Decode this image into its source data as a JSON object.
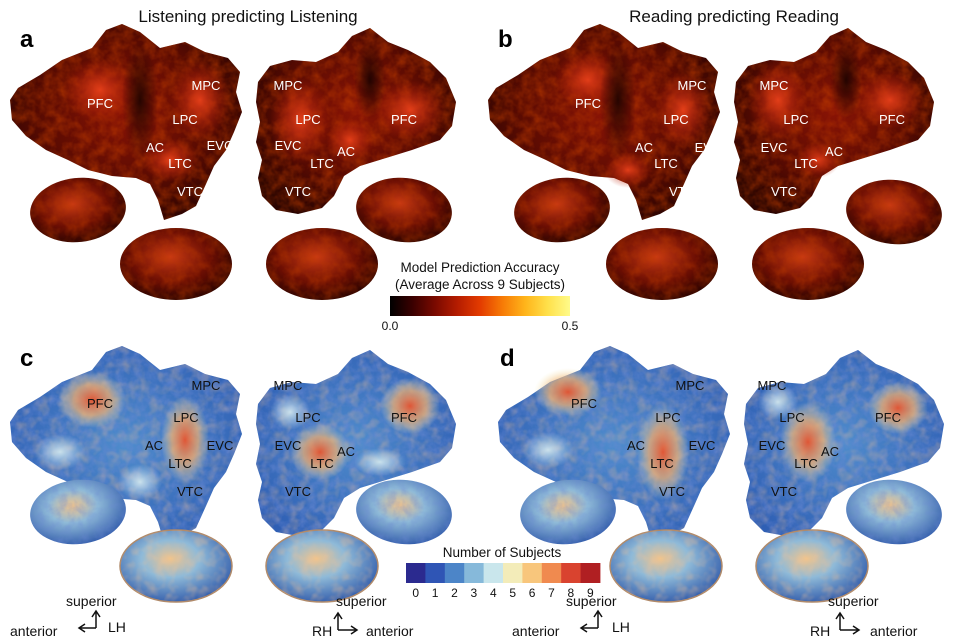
{
  "panels": [
    {
      "letter": "a",
      "title": "Listening predicting Listening",
      "theme": "accuracy"
    },
    {
      "letter": "b",
      "title": "Reading predicting Reading",
      "theme": "accuracy"
    },
    {
      "letter": "c",
      "title": "",
      "theme": "subjects"
    },
    {
      "letter": "d",
      "title": "",
      "theme": "subjects"
    }
  ],
  "roi_labels": {
    "left": [
      "PFC",
      "MPC",
      "LPC",
      "AC",
      "EVC",
      "LTC",
      "VTC"
    ],
    "right": [
      "MPC",
      "LPC",
      "PFC",
      "EVC",
      "AC",
      "LTC",
      "VTC"
    ]
  },
  "colorbar_accuracy": {
    "title_line1": "Model Prediction Accuracy",
    "title_line2": "(Average Across 9 Subjects)",
    "min_label": "0.0",
    "max_label": "0.5",
    "colors": [
      "#000000",
      "#3a0000",
      "#7a0a00",
      "#b51c00",
      "#e33b00",
      "#f77b06",
      "#ffb41a",
      "#ffe04a",
      "#fffb8a"
    ]
  },
  "colorbar_subjects": {
    "title": "Number of Subjects",
    "ticks": [
      "0",
      "1",
      "2",
      "3",
      "4",
      "5",
      "6",
      "7",
      "8",
      "9"
    ],
    "colors": [
      "#2b2a8f",
      "#2f55b5",
      "#4c85c8",
      "#86b9da",
      "#c9e6ec",
      "#f3ecb9",
      "#f8c67c",
      "#f08a4f",
      "#d9432f",
      "#b01f22"
    ]
  },
  "orientation": {
    "left_superior": "superior",
    "left_anterior": "anterior",
    "left_hemi": "LH",
    "right_superior": "superior",
    "right_anterior": "anterior",
    "right_hemi": "RH"
  }
}
